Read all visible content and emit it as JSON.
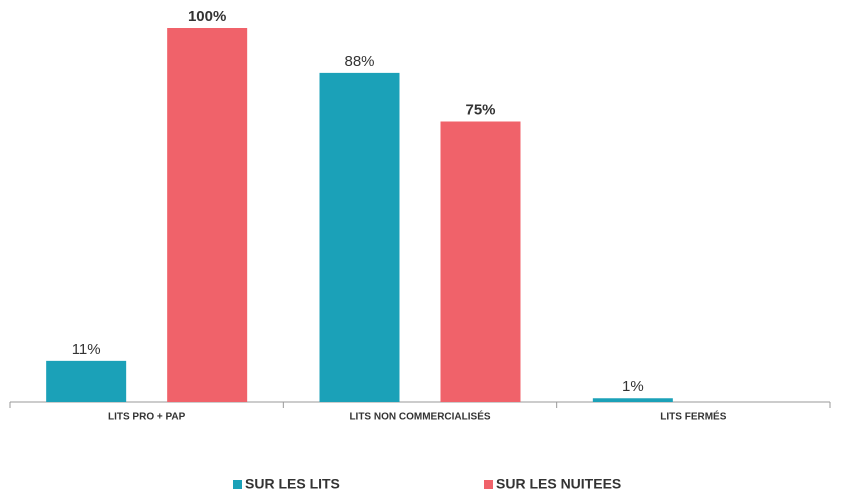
{
  "chart_data": {
    "type": "bar",
    "categories": [
      "LITS PRO + PAP",
      "LITS NON COMMERCIALISÉS",
      "LITS FERMÉS"
    ],
    "series": [
      {
        "name": "SUR LES LITS",
        "color": "#1ba1b8",
        "values": [
          11,
          88,
          1
        ],
        "value_labels": [
          "11%",
          "88%",
          "1%"
        ]
      },
      {
        "name": "SUR LES NUITEES",
        "color": "#f0626a",
        "values": [
          100,
          75,
          null
        ],
        "value_labels": [
          "100%",
          "75%",
          null
        ]
      }
    ]
  }
}
